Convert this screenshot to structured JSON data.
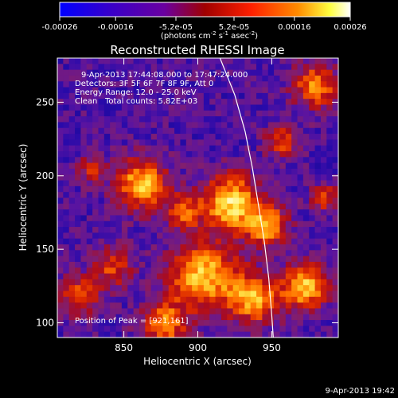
{
  "colorbar": {
    "tick_labels": [
      "-0.00026",
      "-0.00016",
      "-5.2e-05",
      "5.2e-05",
      "0.00016",
      "0.00026"
    ],
    "range": [
      -0.00026,
      0.00026
    ],
    "unit_label": "(photons cm",
    "unit_exp1": "-2",
    "unit_mid": " s",
    "unit_exp2": "-1",
    "unit_end": " asec",
    "unit_exp3": "-2",
    "unit_close": ")",
    "colors": [
      "#0000ff",
      "#3a00c8",
      "#6a00a0",
      "#a00000",
      "#ff2000",
      "#ff8c00",
      "#ffff40",
      "#ffffff"
    ]
  },
  "title": "Reconstructed RHESSI Image",
  "info": {
    "time_line": "9-Apr-2013 17:44:08.000 to 17:47:24.000",
    "detectors_line": "Detectors: 3F 5F 6F 7F 8F 9F, Att 0",
    "energy_line": "Energy Range: 12.0 - 25.0 keV",
    "algorithm": "Clean",
    "counts_line": "Total counts: 5.82E+03",
    "peak_line": "Position of Peak = [921,161]"
  },
  "axes": {
    "x_label": "Heliocentric X (arcsec)",
    "y_label": "Heliocentric Y (arcsec)",
    "x_ticks": [
      "850",
      "900",
      "950"
    ],
    "x_tick_values": [
      850,
      900,
      950
    ],
    "y_ticks": [
      "100",
      "150",
      "200",
      "250"
    ],
    "y_tick_values": [
      100,
      150,
      200,
      250
    ],
    "xlim": [
      805,
      995
    ],
    "ylim": [
      90,
      280
    ]
  },
  "limb": {
    "points": [
      [
        915,
        280
      ],
      [
        925,
        255
      ],
      [
        932,
        230
      ],
      [
        937,
        205
      ],
      [
        941,
        180
      ],
      [
        945,
        155
      ],
      [
        948,
        130
      ],
      [
        950,
        105
      ],
      [
        951,
        90
      ]
    ]
  },
  "footer": {
    "timestamp": "9-Apr-2013 19:42"
  }
}
